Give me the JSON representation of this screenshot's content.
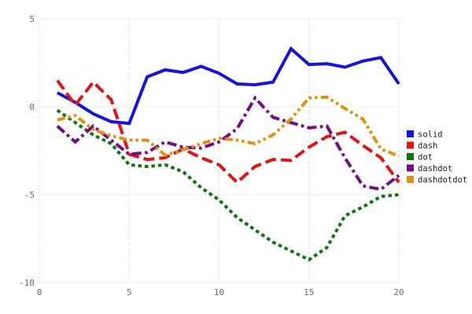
{
  "chart_data": {
    "type": "line",
    "title": "",
    "xlabel": "",
    "ylabel": "",
    "xlim": [
      0,
      20
    ],
    "ylim": [
      -10,
      5
    ],
    "x_ticks": [
      0,
      5,
      10,
      15,
      20
    ],
    "y_ticks": [
      5,
      0,
      -5,
      -10
    ],
    "grid": "dotted",
    "grid_color": "#d4d4d4",
    "tick_color": "#696969",
    "legend_position": "right-outside",
    "x": [
      1,
      2,
      3,
      4,
      5,
      6,
      7,
      8,
      9,
      10,
      11,
      12,
      13,
      14,
      15,
      16,
      17,
      18,
      19,
      20
    ],
    "series": [
      {
        "name": "solid",
        "color": "#1414dd",
        "line_style": "solid",
        "values": [
          0.8,
          0.25,
          -0.4,
          -0.85,
          -0.95,
          1.7,
          2.1,
          1.95,
          2.3,
          1.9,
          1.3,
          1.25,
          1.4,
          3.3,
          2.4,
          2.45,
          2.25,
          2.6,
          2.8,
          1.3
        ]
      },
      {
        "name": "dash",
        "color": "#e11414",
        "line_style": "dash",
        "values": [
          1.5,
          0.1,
          1.4,
          0.4,
          -2.7,
          -3.0,
          -2.9,
          -2.4,
          -2.9,
          -3.3,
          -4.3,
          -3.4,
          -3.0,
          -3.05,
          -2.3,
          -1.7,
          -1.45,
          -2.2,
          -2.9,
          -4.3
        ]
      },
      {
        "name": "dot",
        "color": "#0d760d",
        "line_style": "dot",
        "values": [
          -0.2,
          -0.9,
          -1.6,
          -2.1,
          -3.3,
          -3.4,
          -3.3,
          -3.7,
          -4.6,
          -5.3,
          -6.3,
          -7.0,
          -7.7,
          -8.2,
          -8.7,
          -8.0,
          -6.2,
          -5.7,
          -5.1,
          -5.0
        ]
      },
      {
        "name": "dashdot",
        "color": "#750c86",
        "line_style": "dashdot",
        "values": [
          -1.1,
          -2.0,
          -1.1,
          -1.9,
          -2.7,
          -2.6,
          -2.0,
          -2.3,
          -2.35,
          -2.0,
          -1.25,
          0.5,
          -0.6,
          -0.9,
          -1.2,
          -1.1,
          -2.9,
          -4.5,
          -4.7,
          -3.9
        ]
      },
      {
        "name": "dashdotdot",
        "color": "#e0920f",
        "line_style": "dashdotdot",
        "values": [
          -0.75,
          -0.5,
          -1.3,
          -1.65,
          -1.9,
          -1.9,
          -2.75,
          -2.45,
          -2.1,
          -1.8,
          -1.9,
          -2.1,
          -1.6,
          -0.7,
          0.5,
          0.55,
          -0.1,
          -0.7,
          -2.4,
          -2.8
        ]
      }
    ],
    "legend_items": [
      "solid",
      "dash",
      "dot",
      "dashdot",
      "dashdotdot"
    ]
  }
}
